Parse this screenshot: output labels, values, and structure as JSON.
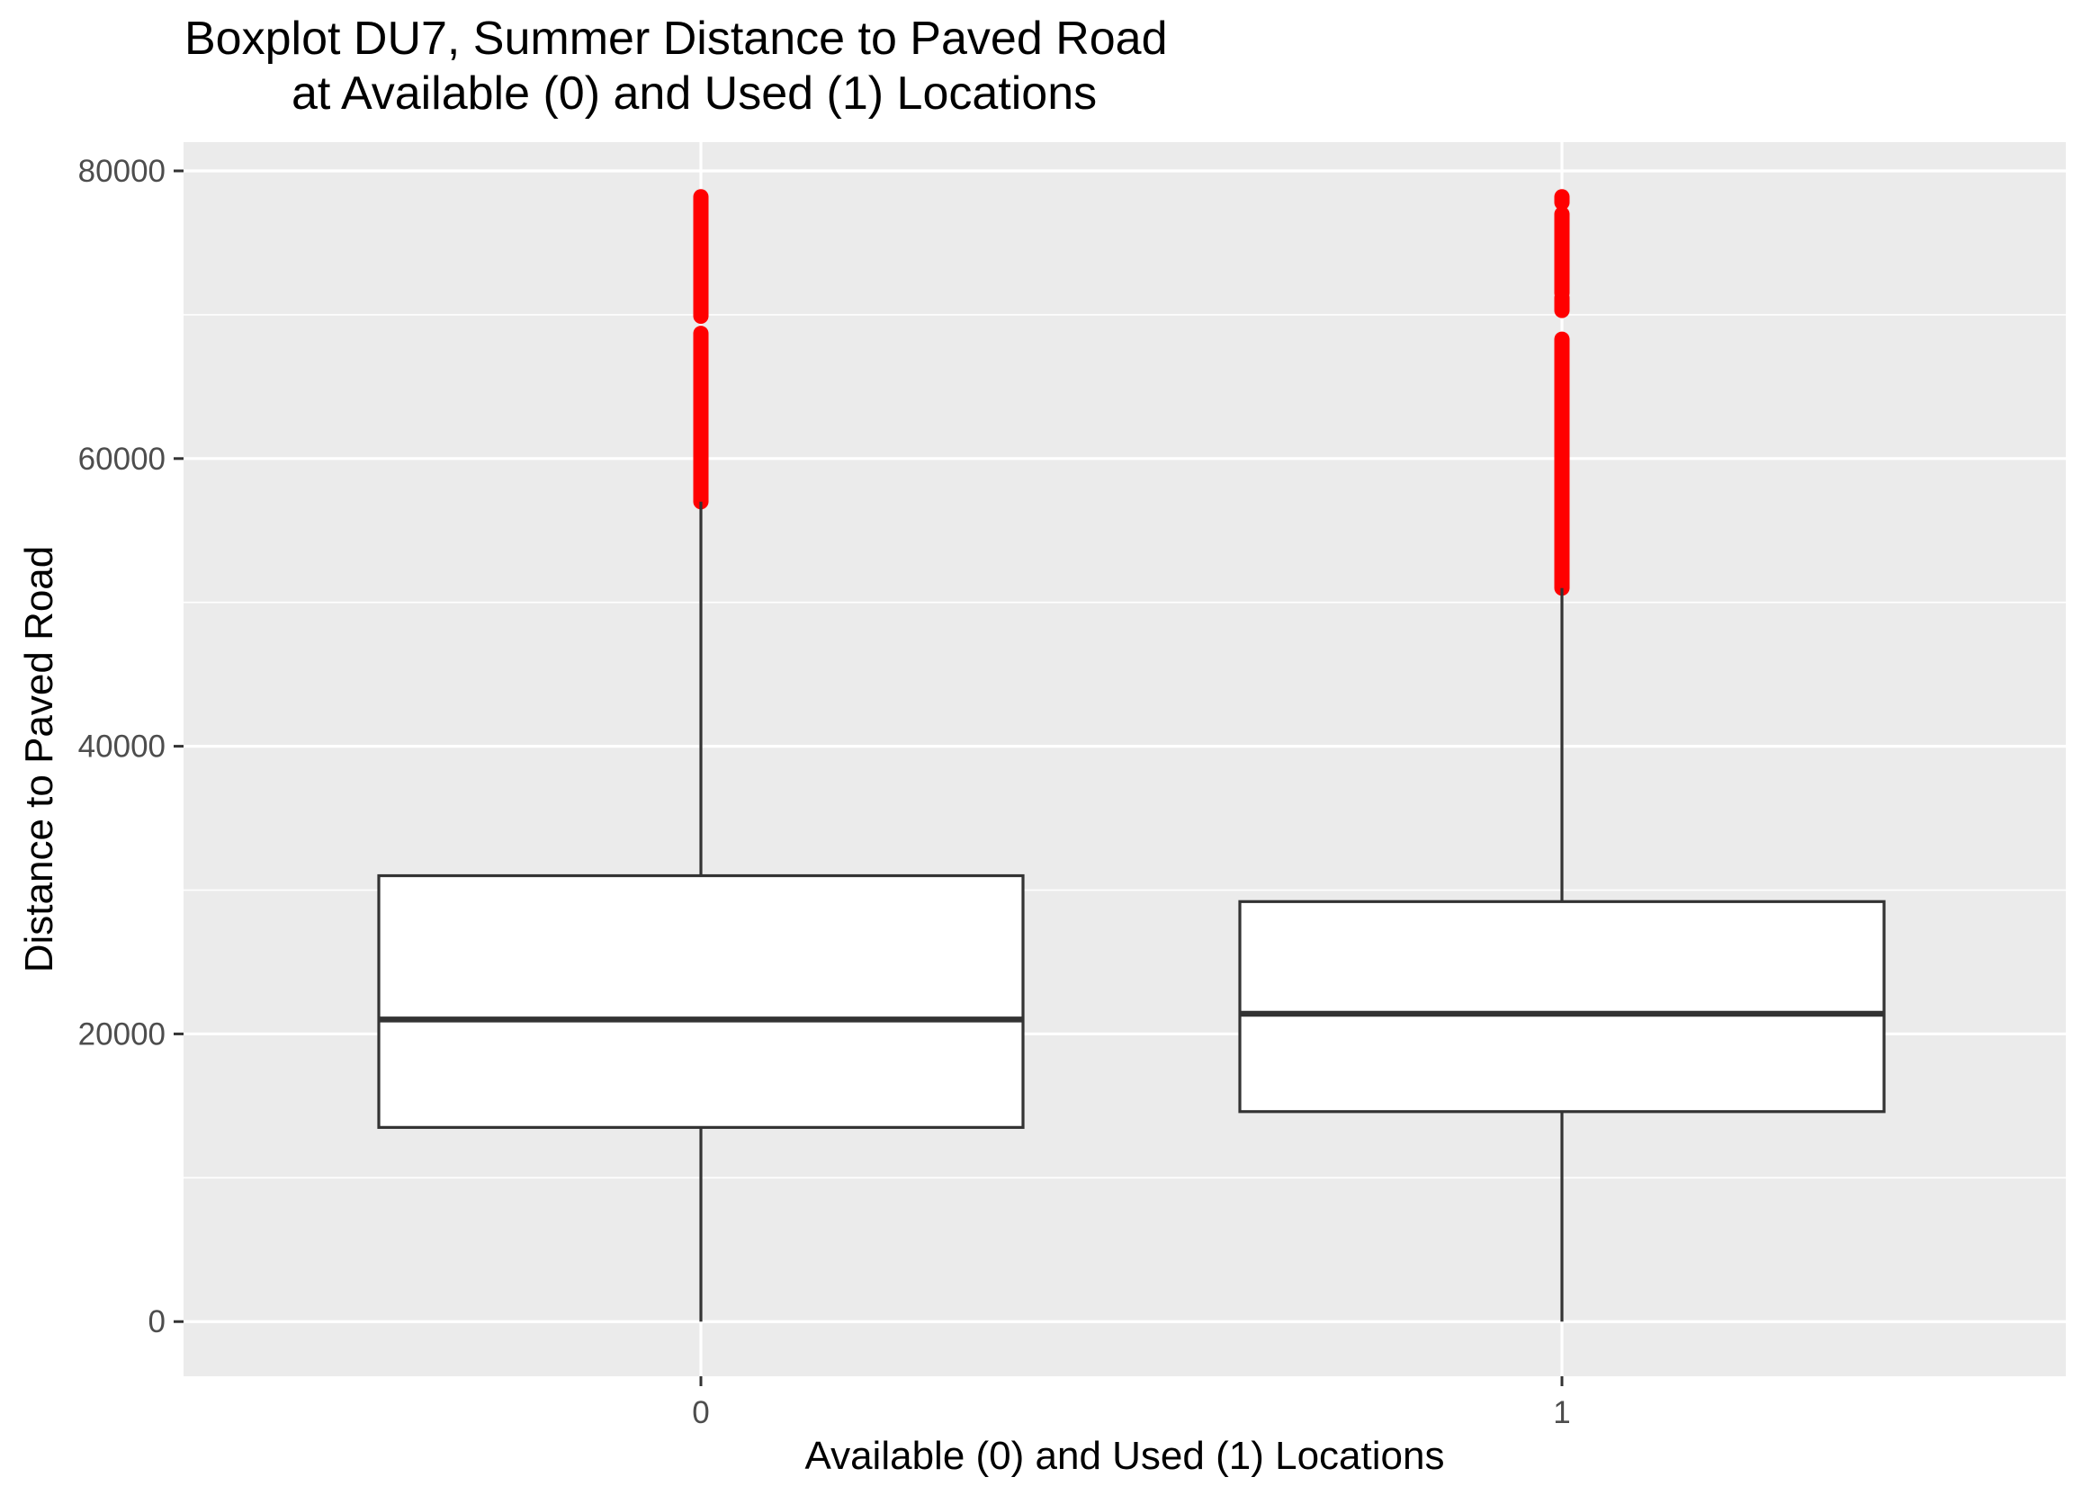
{
  "chart_data": {
    "type": "boxplot",
    "title": [
      "Boxplot DU7, Summer Distance to Paved Road",
      "at Available (0) and Used (1) Locations"
    ],
    "xlabel": "Available (0) and Used (1) Locations",
    "ylabel": "Distance to Paved Road",
    "categories": [
      "0",
      "1"
    ],
    "ylim": [
      -3800,
      82000
    ],
    "y_ticks": [
      0,
      20000,
      40000,
      60000,
      80000
    ],
    "y_tick_labels": [
      "0",
      "20000",
      "40000",
      "60000",
      "80000"
    ],
    "grid": true,
    "colors": {
      "panel_background": "#ebebeb",
      "grid": "#ffffff",
      "box_fill": "#ffffff",
      "box_line": "#333333",
      "outlier": "#ff0000",
      "tick_label": "#4d4d4d"
    },
    "series": [
      {
        "name": "0",
        "whisker_low": 0,
        "q1": 13500,
        "median": 21000,
        "q3": 31000,
        "whisker_high": 57000,
        "outlier_ranges": [
          [
            57000,
            68700
          ],
          [
            69900,
            78200
          ]
        ]
      },
      {
        "name": "1",
        "whisker_low": 0,
        "q1": 14600,
        "median": 21400,
        "q3": 29200,
        "whisker_high": 51000,
        "outlier_ranges": [
          [
            51000,
            68300
          ],
          [
            70300,
            71200
          ],
          [
            71500,
            77000
          ],
          [
            77800,
            78200
          ]
        ]
      }
    ]
  }
}
